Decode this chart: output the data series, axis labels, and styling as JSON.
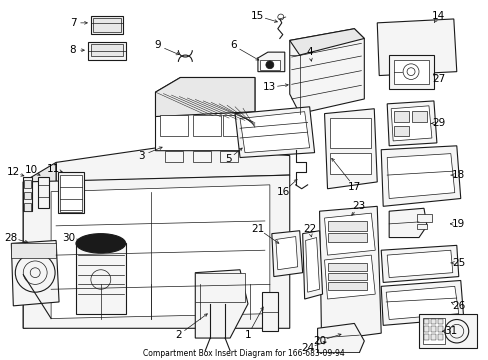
{
  "title": "Compartment Box Insert Diagram for 166-683-09-94",
  "bg_color": "#ffffff",
  "lc": "#1a1a1a",
  "fc_light": "#f5f5f5",
  "fc_mid": "#e8e8e8",
  "fc_dark": "#d8d8d8"
}
